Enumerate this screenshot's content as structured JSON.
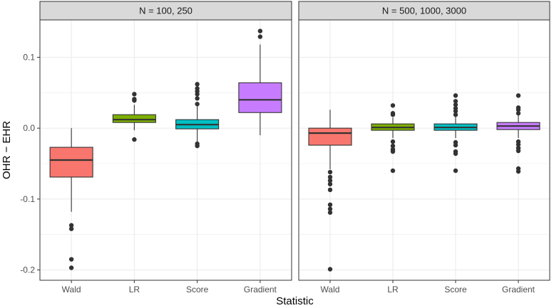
{
  "chart_data": {
    "type": "boxplot",
    "xlabel": "Statistic",
    "ylabel": "OHR − EHR",
    "ylim": [
      -0.205,
      0.14
    ],
    "yticks": [
      -0.2,
      -0.1,
      0.0,
      0.1
    ],
    "ytick_labels": [
      "-0.2",
      "-0.1",
      "0.0",
      "0.1"
    ],
    "categories": [
      "Wald",
      "LR",
      "Score",
      "Gradient"
    ],
    "colors": {
      "Wald": "#F8766D",
      "LR": "#7CAE00",
      "Score": "#00BFC4",
      "Gradient": "#C77CFF",
      "panel_bg": "#FFFFFF",
      "strip_bg": "#D9D9D9",
      "grid": "#EBEBEB",
      "border": "#333333",
      "outlier": "#333333"
    },
    "panels": [
      {
        "title": "N = 100, 250",
        "boxes": [
          {
            "category": "Wald",
            "whisker_low": -0.118,
            "q1": -0.069,
            "median": -0.045,
            "q3": -0.027,
            "whisker_high": 0.0,
            "outliers": [
              -0.137,
              -0.142,
              -0.185,
              -0.197
            ]
          },
          {
            "category": "LR",
            "whisker_low": -0.003,
            "q1": 0.008,
            "median": 0.012,
            "q3": 0.019,
            "whisker_high": 0.033,
            "outliers": [
              0.048,
              0.041,
              0.039,
              -0.016
            ]
          },
          {
            "category": "Score",
            "whisker_low": -0.019,
            "q1": -0.001,
            "median": 0.005,
            "q3": 0.012,
            "whisker_high": 0.031,
            "outliers": [
              0.062,
              0.056,
              0.052,
              0.048,
              0.042,
              0.034,
              -0.022,
              -0.025
            ]
          },
          {
            "category": "Gradient",
            "whisker_low": -0.01,
            "q1": 0.022,
            "median": 0.04,
            "q3": 0.064,
            "whisker_high": 0.118,
            "outliers": [
              0.137,
              0.129
            ]
          }
        ]
      },
      {
        "title": "N = 500, 1000, 3000",
        "boxes": [
          {
            "category": "Wald",
            "whisker_low": -0.058,
            "q1": -0.024,
            "median": -0.007,
            "q3": 0.0,
            "whisker_high": 0.026,
            "outliers": [
              -0.062,
              -0.069,
              -0.074,
              -0.079,
              -0.087,
              -0.108,
              -0.114,
              -0.119,
              -0.199
            ]
          },
          {
            "category": "LR",
            "whisker_low": -0.014,
            "q1": -0.003,
            "median": 0.001,
            "q3": 0.006,
            "whisker_high": 0.015,
            "outliers": [
              0.032,
              0.021,
              0.019,
              -0.019,
              -0.025,
              -0.03,
              -0.033,
              -0.06
            ]
          },
          {
            "category": "Score",
            "whisker_low": -0.014,
            "q1": -0.003,
            "median": 0.001,
            "q3": 0.006,
            "whisker_high": 0.016,
            "outliers": [
              0.046,
              0.038,
              0.033,
              0.028,
              0.024,
              0.019,
              -0.02,
              -0.024,
              -0.033,
              -0.036,
              -0.06
            ]
          },
          {
            "category": "Gradient",
            "whisker_low": -0.014,
            "q1": -0.002,
            "median": 0.003,
            "q3": 0.008,
            "whisker_high": 0.018,
            "outliers": [
              0.046,
              0.029,
              0.026,
              0.021,
              -0.019,
              -0.023,
              -0.028,
              -0.032,
              -0.057,
              -0.061
            ]
          }
        ]
      }
    ]
  }
}
